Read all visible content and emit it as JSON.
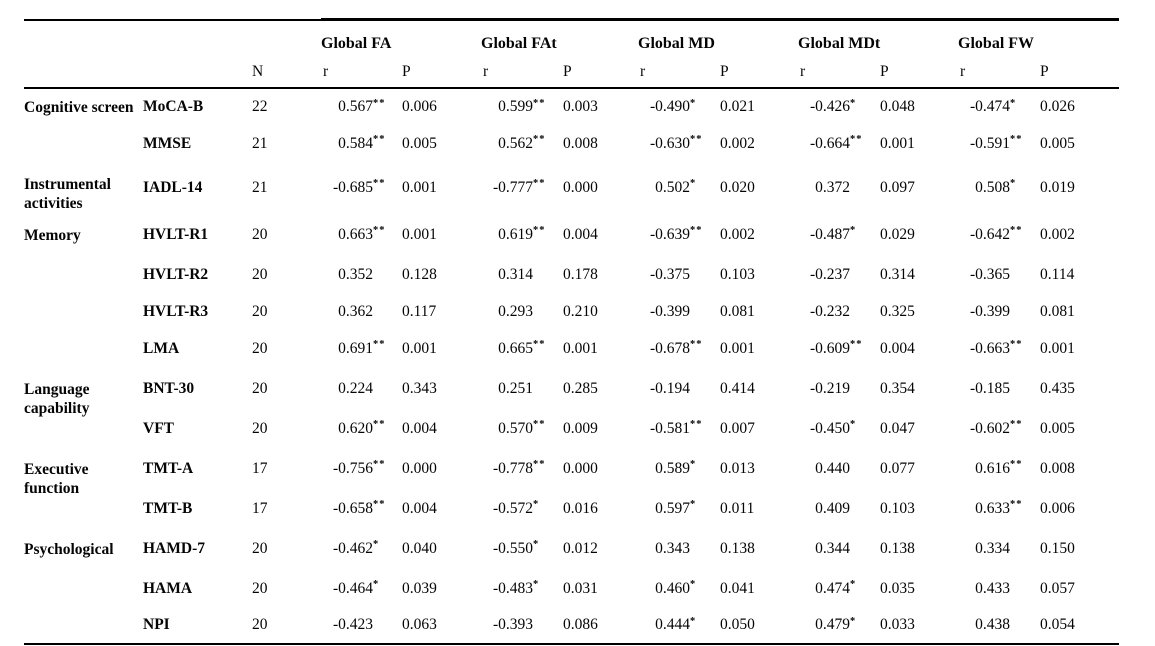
{
  "table": {
    "metrics": [
      "Global FA",
      "Global FAt",
      "Global MD",
      "Global MDt",
      "Global FW"
    ],
    "sub": {
      "n": "N",
      "r": "r",
      "p": "P"
    },
    "groups": [
      {
        "category": "Cognitive screen",
        "rows": [
          {
            "test": "MoCA-B",
            "n": "22",
            "values": [
              {
                "r": "0.567",
                "stars": "**",
                "p": "0.006"
              },
              {
                "r": "0.599",
                "stars": "**",
                "p": "0.003"
              },
              {
                "r": "-0.490",
                "stars": "*",
                "p": "0.021"
              },
              {
                "r": "-0.426",
                "stars": "*",
                "p": "0.048"
              },
              {
                "r": "-0.474",
                "stars": "*",
                "p": "0.026"
              }
            ]
          },
          {
            "test": "MMSE",
            "n": "21",
            "values": [
              {
                "r": "0.584",
                "stars": "**",
                "p": "0.005"
              },
              {
                "r": "0.562",
                "stars": "**",
                "p": "0.008"
              },
              {
                "r": "-0.630",
                "stars": "**",
                "p": "0.002"
              },
              {
                "r": "-0.664",
                "stars": "**",
                "p": "0.001"
              },
              {
                "r": "-0.591",
                "stars": "**",
                "p": "0.005"
              }
            ]
          }
        ]
      },
      {
        "category": "Instrumental activities",
        "rows": [
          {
            "test": "IADL-14",
            "n": "21",
            "values": [
              {
                "r": "-0.685",
                "stars": "**",
                "p": "0.001"
              },
              {
                "r": "-0.777",
                "stars": "**",
                "p": "0.000"
              },
              {
                "r": "0.502",
                "stars": "*",
                "p": "0.020"
              },
              {
                "r": "0.372",
                "stars": "",
                "p": "0.097"
              },
              {
                "r": "0.508",
                "stars": "*",
                "p": "0.019"
              }
            ]
          }
        ]
      },
      {
        "category": "Memory",
        "rows": [
          {
            "test": "HVLT-R1",
            "n": "20",
            "values": [
              {
                "r": "0.663",
                "stars": "**",
                "p": "0.001"
              },
              {
                "r": "0.619",
                "stars": "**",
                "p": "0.004"
              },
              {
                "r": "-0.639",
                "stars": "**",
                "p": "0.002"
              },
              {
                "r": "-0.487",
                "stars": "*",
                "p": "0.029"
              },
              {
                "r": "-0.642",
                "stars": "**",
                "p": "0.002"
              }
            ]
          },
          {
            "test": "HVLT-R2",
            "n": "20",
            "values": [
              {
                "r": "0.352",
                "stars": "",
                "p": "0.128"
              },
              {
                "r": "0.314",
                "stars": "",
                "p": "0.178"
              },
              {
                "r": "-0.375",
                "stars": "",
                "p": "0.103"
              },
              {
                "r": "-0.237",
                "stars": "",
                "p": "0.314"
              },
              {
                "r": "-0.365",
                "stars": "",
                "p": "0.114"
              }
            ]
          },
          {
            "test": "HVLT-R3",
            "n": "20",
            "values": [
              {
                "r": "0.362",
                "stars": "",
                "p": "0.117"
              },
              {
                "r": "0.293",
                "stars": "",
                "p": "0.210"
              },
              {
                "r": "-0.399",
                "stars": "",
                "p": "0.081"
              },
              {
                "r": "-0.232",
                "stars": "",
                "p": "0.325"
              },
              {
                "r": "-0.399",
                "stars": "",
                "p": "0.081"
              }
            ]
          },
          {
            "test": "LMA",
            "n": "20",
            "values": [
              {
                "r": "0.691",
                "stars": "**",
                "p": "0.001"
              },
              {
                "r": "0.665",
                "stars": "**",
                "p": "0.001"
              },
              {
                "r": "-0.678",
                "stars": "**",
                "p": "0.001"
              },
              {
                "r": "-0.609",
                "stars": "**",
                "p": "0.004"
              },
              {
                "r": "-0.663",
                "stars": "**",
                "p": "0.001"
              }
            ]
          }
        ]
      },
      {
        "category": "Language capability",
        "rows": [
          {
            "test": "BNT-30",
            "n": "20",
            "values": [
              {
                "r": "0.224",
                "stars": "",
                "p": "0.343"
              },
              {
                "r": "0.251",
                "stars": "",
                "p": "0.285"
              },
              {
                "r": "-0.194",
                "stars": "",
                "p": "0.414"
              },
              {
                "r": "-0.219",
                "stars": "",
                "p": "0.354"
              },
              {
                "r": "-0.185",
                "stars": "",
                "p": "0.435"
              }
            ]
          },
          {
            "test": "VFT",
            "n": "20",
            "values": [
              {
                "r": "0.620",
                "stars": "**",
                "p": "0.004"
              },
              {
                "r": "0.570",
                "stars": "**",
                "p": "0.009"
              },
              {
                "r": "-0.581",
                "stars": "**",
                "p": "0.007"
              },
              {
                "r": "-0.450",
                "stars": "*",
                "p": "0.047"
              },
              {
                "r": "-0.602",
                "stars": "**",
                "p": "0.005"
              }
            ]
          }
        ]
      },
      {
        "category": "Executive function",
        "rows": [
          {
            "test": "TMT-A",
            "n": "17",
            "values": [
              {
                "r": "-0.756",
                "stars": "**",
                "p": "0.000"
              },
              {
                "r": "-0.778",
                "stars": "**",
                "p": "0.000"
              },
              {
                "r": "0.589",
                "stars": "*",
                "p": "0.013"
              },
              {
                "r": "0.440",
                "stars": "",
                "p": "0.077"
              },
              {
                "r": "0.616",
                "stars": "**",
                "p": "0.008"
              }
            ]
          },
          {
            "test": "TMT-B",
            "n": "17",
            "values": [
              {
                "r": "-0.658",
                "stars": "**",
                "p": "0.004"
              },
              {
                "r": "-0.572",
                "stars": "*",
                "p": "0.016"
              },
              {
                "r": "0.597",
                "stars": "*",
                "p": "0.011"
              },
              {
                "r": "0.409",
                "stars": "",
                "p": "0.103"
              },
              {
                "r": "0.633",
                "stars": "**",
                "p": "0.006"
              }
            ]
          }
        ]
      },
      {
        "category": "Psychological",
        "rows": [
          {
            "test": "HAMD-7",
            "n": "20",
            "values": [
              {
                "r": "-0.462",
                "stars": "*",
                "p": "0.040"
              },
              {
                "r": "-0.550",
                "stars": "*",
                "p": "0.012"
              },
              {
                "r": "0.343",
                "stars": "",
                "p": "0.138"
              },
              {
                "r": "0.344",
                "stars": "",
                "p": "0.138"
              },
              {
                "r": "0.334",
                "stars": "",
                "p": "0.150"
              }
            ]
          },
          {
            "test": "HAMA",
            "n": "20",
            "values": [
              {
                "r": "-0.464",
                "stars": "*",
                "p": "0.039"
              },
              {
                "r": "-0.483",
                "stars": "*",
                "p": "0.031"
              },
              {
                "r": "0.460",
                "stars": "*",
                "p": "0.041"
              },
              {
                "r": "0.474",
                "stars": "*",
                "p": "0.035"
              },
              {
                "r": "0.433",
                "stars": "",
                "p": "0.057"
              }
            ]
          },
          {
            "test": "NPI",
            "n": "20",
            "values": [
              {
                "r": "-0.423",
                "stars": "",
                "p": "0.063"
              },
              {
                "r": "-0.393",
                "stars": "",
                "p": "0.086"
              },
              {
                "r": "0.444",
                "stars": "*",
                "p": "0.050"
              },
              {
                "r": "0.479",
                "stars": "*",
                "p": "0.033"
              },
              {
                "r": "0.438",
                "stars": "",
                "p": "0.054"
              }
            ]
          }
        ]
      }
    ]
  }
}
